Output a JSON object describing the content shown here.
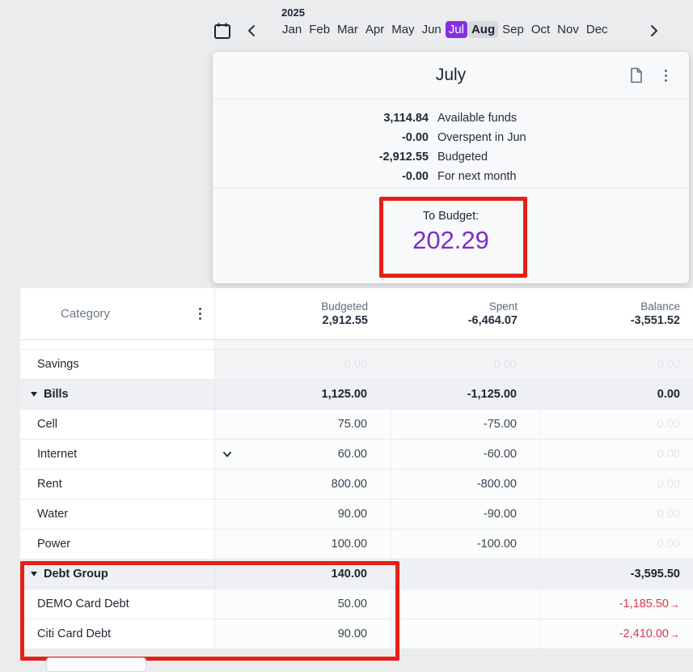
{
  "year": "2025",
  "month_nav": {
    "months": [
      "Jan",
      "Feb",
      "Mar",
      "Apr",
      "May",
      "Jun",
      "Jul",
      "Aug",
      "Sep",
      "Oct",
      "Nov",
      "Dec"
    ],
    "selected_month": "Jul",
    "adjacent_month": "Aug"
  },
  "panel": {
    "title": "July",
    "summary_rows": [
      {
        "value": "3,114.84",
        "label": "Available funds"
      },
      {
        "value": "-0.00",
        "label": "Overspent in Jun"
      },
      {
        "value": "-2,912.55",
        "label": "Budgeted"
      },
      {
        "value": "-0.00",
        "label": "For next month"
      }
    ],
    "to_budget": {
      "label": "To Budget:",
      "value": "202.29"
    }
  },
  "table": {
    "category_header": "Category",
    "carry_arrow": "→",
    "columns": [
      {
        "label": "Budgeted",
        "total": "2,912.55"
      },
      {
        "label": "Spent",
        "total": "-6,464.07"
      },
      {
        "label": "Balance",
        "total": "-3,551.52"
      }
    ],
    "rows": [
      {
        "name": "Savings",
        "budgeted": "0.00",
        "spent": "0.00",
        "balance": "0.00",
        "faint": [
          "budgeted",
          "spent",
          "balance"
        ],
        "muted_bg": true
      },
      {
        "name": "Bills",
        "group": true,
        "budgeted": "1,125.00",
        "spent": "-1,125.00",
        "balance": "0.00"
      },
      {
        "name": "Cell",
        "budgeted": "75.00",
        "spent": "-75.00",
        "balance": "0.00",
        "faint": [
          "balance"
        ]
      },
      {
        "name": "Internet",
        "budgeted": "60.00",
        "spent": "-60.00",
        "balance": "0.00",
        "faint": [
          "balance"
        ],
        "chevron": true
      },
      {
        "name": "Rent",
        "budgeted": "800.00",
        "spent": "-800.00",
        "balance": "0.00",
        "faint": [
          "balance"
        ]
      },
      {
        "name": "Water",
        "budgeted": "90.00",
        "spent": "-90.00",
        "balance": "0.00",
        "faint": [
          "balance"
        ]
      },
      {
        "name": "Power",
        "budgeted": "100.00",
        "spent": "-100.00",
        "balance": "0.00",
        "faint": [
          "balance"
        ]
      },
      {
        "name": "Debt Group",
        "group": true,
        "budgeted": "140.00",
        "spent": "",
        "balance": "-3,595.50"
      },
      {
        "name": "DEMO Card Debt",
        "budgeted": "50.00",
        "spent": "",
        "balance": "-1,185.50",
        "balance_negative": true,
        "carry": true
      },
      {
        "name": "Citi Card Debt",
        "budgeted": "90.00",
        "spent": "",
        "balance": "-2,410.00",
        "balance_negative": true,
        "carry": true
      }
    ]
  },
  "colors": {
    "accent_purple": "#8430e0",
    "to_budget_purple": "#7c2bce",
    "negative_red": "#d73a55",
    "annotation_red": "#e32119"
  },
  "icons": {
    "calendar-icon": "calendar outline",
    "chevron-left-icon": "‹",
    "chevron-right-icon": "›",
    "document-icon": "page with folded corner",
    "kebab-menu-icon": "⋮",
    "chevron-down-icon": "⌄",
    "triangle-collapse-icon": "▾"
  }
}
